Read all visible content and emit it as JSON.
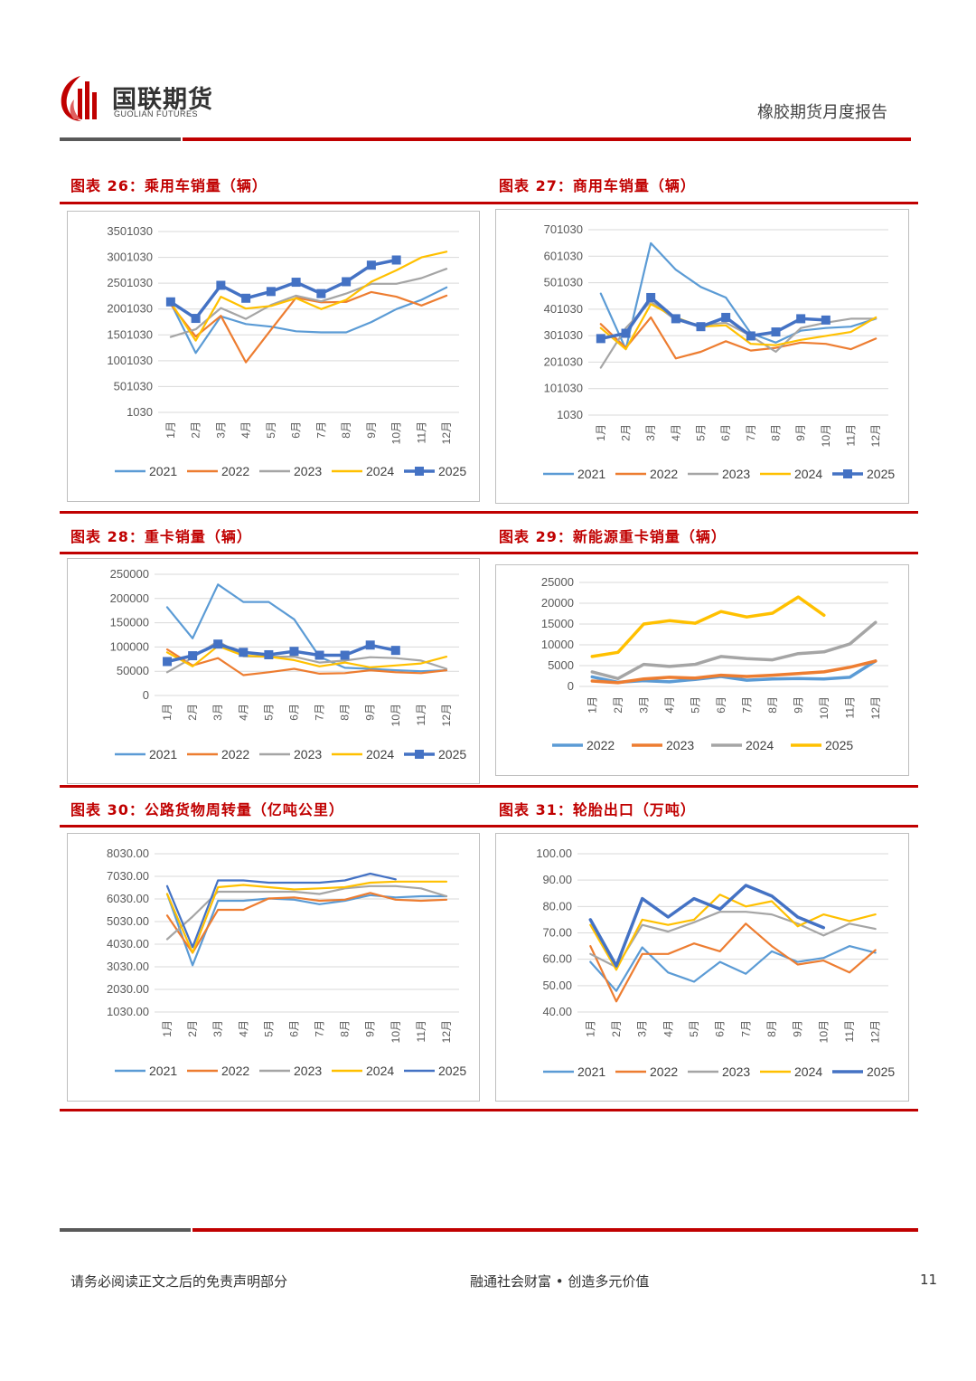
{
  "header": {
    "logo_cn": "国联期货",
    "logo_en": "GUOLIAN FUTURES",
    "report_title": "橡胶期货月度报告"
  },
  "footer": {
    "disclaimer": "请务必阅读正文之后的免责声明部分",
    "slogan": "融通社会财富 • 创造多元价值",
    "page_number": "11"
  },
  "colors": {
    "brand_red": "#c00000",
    "2021": "#5b9bd5",
    "2022": "#ed7d31",
    "2023": "#a5a5a5",
    "2024": "#ffc000",
    "2025": "#4472c4"
  },
  "chart_data": [
    {
      "title": "图表 26：乘用车销量（辆）",
      "type": "line",
      "categories": [
        "1月",
        "2月",
        "3月",
        "4月",
        "5月",
        "6月",
        "7月",
        "8月",
        "9月",
        "10月",
        "11月",
        "12月"
      ],
      "ylim": [
        1030,
        3501030
      ],
      "yticks": [
        "1030",
        "501030",
        "1001030",
        "1501030",
        "2001030",
        "2501030",
        "3001030",
        "3501030"
      ],
      "ytick_values": [
        1030,
        501030,
        1001030,
        1501030,
        2001030,
        2501030,
        3001030,
        3501030
      ],
      "grid": true,
      "legend": "bottom",
      "series": [
        {
          "name": "2021",
          "values": [
            2120000,
            1150000,
            1860000,
            1710000,
            1660000,
            1570000,
            1550000,
            1550000,
            1750000,
            2000000,
            2180000,
            2420000
          ]
        },
        {
          "name": "2022",
          "values": [
            2090000,
            1470000,
            1870000,
            970000,
            1600000,
            2220000,
            2130000,
            2140000,
            2330000,
            2240000,
            2070000,
            2260000
          ]
        },
        {
          "name": "2023",
          "values": [
            1460000,
            1610000,
            2020000,
            1810000,
            2080000,
            2260000,
            2150000,
            2300000,
            2490000,
            2490000,
            2600000,
            2780000
          ]
        },
        {
          "name": "2024",
          "values": [
            2130000,
            1390000,
            2240000,
            2010000,
            2060000,
            2210000,
            2000000,
            2180000,
            2530000,
            2750000,
            3000000,
            3110000
          ]
        },
        {
          "name": "2025",
          "values": [
            2140000,
            1820000,
            2460000,
            2210000,
            2340000,
            2520000,
            2300000,
            2530000,
            2850000,
            2950000,
            null,
            null
          ],
          "markers": true
        }
      ]
    },
    {
      "title": "图表 27：商用车销量（辆）",
      "type": "line",
      "categories": [
        "1月",
        "2月",
        "3月",
        "4月",
        "5月",
        "6月",
        "7月",
        "8月",
        "9月",
        "10月",
        "11月",
        "12月"
      ],
      "ylim": [
        1030,
        701030
      ],
      "yticks": [
        "1030",
        "101030",
        "201030",
        "301030",
        "401030",
        "501030",
        "601030",
        "701030"
      ],
      "ytick_values": [
        1030,
        101030,
        201030,
        301030,
        401030,
        501030,
        601030,
        701030
      ],
      "grid": true,
      "legend": "bottom",
      "series": [
        {
          "name": "2021",
          "values": [
            460000,
            250000,
            650000,
            550000,
            485000,
            445000,
            310000,
            275000,
            320000,
            330000,
            335000,
            365000
          ]
        },
        {
          "name": "2022",
          "values": [
            345000,
            255000,
            370000,
            215000,
            240000,
            280000,
            245000,
            255000,
            275000,
            270000,
            250000,
            290000
          ]
        },
        {
          "name": "2023",
          "values": [
            180000,
            330000,
            430000,
            360000,
            340000,
            350000,
            300000,
            240000,
            330000,
            350000,
            365000,
            365000
          ]
        },
        {
          "name": "2024",
          "values": [
            330000,
            250000,
            420000,
            370000,
            335000,
            340000,
            270000,
            265000,
            285000,
            300000,
            315000,
            370000
          ]
        },
        {
          "name": "2025",
          "values": [
            290000,
            310000,
            445000,
            365000,
            335000,
            370000,
            300000,
            315000,
            365000,
            360000,
            null,
            null
          ],
          "markers": true
        }
      ]
    },
    {
      "title": "图表 28：重卡销量（辆）",
      "type": "line",
      "categories": [
        "1月",
        "2月",
        "3月",
        "4月",
        "5月",
        "6月",
        "7月",
        "8月",
        "9月",
        "10月",
        "11月",
        "12月"
      ],
      "ylim": [
        0,
        250000
      ],
      "yticks": [
        "0",
        "50000",
        "100000",
        "150000",
        "200000",
        "250000"
      ],
      "ytick_values": [
        0,
        50000,
        100000,
        150000,
        200000,
        250000
      ],
      "grid": true,
      "legend": "bottom",
      "series": [
        {
          "name": "2021",
          "values": [
            182000,
            118000,
            229000,
            193000,
            193000,
            157000,
            80000,
            57000,
            55000,
            52000,
            50000,
            52000
          ]
        },
        {
          "name": "2022",
          "values": [
            95000,
            62000,
            77000,
            42000,
            48000,
            55000,
            45000,
            46000,
            52000,
            48000,
            46000,
            52000
          ]
        },
        {
          "name": "2023",
          "values": [
            48000,
            78000,
            112000,
            81000,
            80000,
            80000,
            68000,
            72000,
            79000,
            77000,
            72000,
            55000
          ]
        },
        {
          "name": "2024",
          "values": [
            89000,
            60000,
            102000,
            82000,
            80000,
            73000,
            60000,
            68000,
            58000,
            62000,
            66000,
            80000
          ]
        },
        {
          "name": "2025",
          "values": [
            70000,
            82000,
            106000,
            89000,
            84000,
            91000,
            83000,
            83000,
            104000,
            93000,
            null,
            null
          ],
          "markers": true
        }
      ]
    },
    {
      "title": "图表 29：新能源重卡销量（辆）",
      "type": "line",
      "categories": [
        "1月",
        "2月",
        "3月",
        "4月",
        "5月",
        "6月",
        "7月",
        "8月",
        "9月",
        "10月",
        "11月",
        "12月"
      ],
      "ylim": [
        0,
        25000
      ],
      "yticks": [
        "0",
        "5000",
        "10000",
        "15000",
        "20000",
        "25000"
      ],
      "ytick_values": [
        0,
        5000,
        10000,
        15000,
        20000,
        25000
      ],
      "grid": true,
      "legend": "bottom",
      "series": [
        {
          "name": "2022",
          "values": [
            2300,
            1000,
            1400,
            1100,
            1700,
            2400,
            1500,
            1800,
            1900,
            1800,
            2200,
            6100
          ],
          "color": "#5b9bd5"
        },
        {
          "name": "2023",
          "values": [
            1300,
            900,
            1800,
            2200,
            2000,
            2700,
            2400,
            2700,
            3100,
            3500,
            4600,
            6100
          ],
          "color": "#ed7d31"
        },
        {
          "name": "2024",
          "values": [
            3500,
            1900,
            5300,
            4800,
            5300,
            7200,
            6700,
            6400,
            7900,
            8300,
            10200,
            15400
          ],
          "color": "#a5a5a5"
        },
        {
          "name": "2025",
          "values": [
            7200,
            8200,
            15000,
            15800,
            15200,
            18000,
            16700,
            17600,
            21500,
            17100,
            null,
            null
          ],
          "color": "#ffc000"
        }
      ]
    },
    {
      "title": "图表 30：公路货物周转量（亿吨公里）",
      "type": "line",
      "categories": [
        "1月",
        "2月",
        "3月",
        "4月",
        "5月",
        "6月",
        "7月",
        "8月",
        "9月",
        "10月",
        "11月",
        "12月"
      ],
      "ylim": [
        1030,
        8030
      ],
      "yticks": [
        "1030.00",
        "2030.00",
        "3030.00",
        "4030.00",
        "5030.00",
        "6030.00",
        "7030.00",
        "8030.00"
      ],
      "ytick_values": [
        1030,
        2030,
        3030,
        4030,
        5030,
        6030,
        7030,
        8030
      ],
      "grid": true,
      "legend": "bottom",
      "series": [
        {
          "name": "2021",
          "values": [
            6250,
            3100,
            5950,
            5950,
            6050,
            6000,
            5800,
            5950,
            6200,
            6100,
            6150,
            6150
          ]
        },
        {
          "name": "2022",
          "values": [
            5300,
            3650,
            5550,
            5550,
            6050,
            6100,
            5950,
            6000,
            6300,
            6000,
            5950,
            6000
          ]
        },
        {
          "name": "2023",
          "values": [
            4250,
            5250,
            6350,
            6350,
            6350,
            6350,
            6250,
            6500,
            6600,
            6600,
            6500,
            6150
          ]
        },
        {
          "name": "2024",
          "values": [
            6250,
            3650,
            6550,
            6650,
            6550,
            6450,
            6500,
            6550,
            6750,
            6800,
            6800,
            6800
          ]
        },
        {
          "name": "2025",
          "values": [
            6600,
            3900,
            6850,
            6850,
            6750,
            6750,
            6750,
            6850,
            7150,
            6900,
            null,
            null
          ]
        }
      ]
    },
    {
      "title": "图表 31：轮胎出口（万吨）",
      "type": "line",
      "categories": [
        "1月",
        "2月",
        "3月",
        "4月",
        "5月",
        "6月",
        "7月",
        "8月",
        "9月",
        "10月",
        "11月",
        "12月"
      ],
      "ylim": [
        40,
        100
      ],
      "yticks": [
        "40.00",
        "50.00",
        "60.00",
        "70.00",
        "80.00",
        "90.00",
        "100.00"
      ],
      "ytick_values": [
        40,
        50,
        60,
        70,
        80,
        90,
        100
      ],
      "grid": true,
      "legend": "bottom",
      "series": [
        {
          "name": "2021",
          "values": [
            59,
            48,
            64.5,
            55,
            51.5,
            59,
            54.5,
            63,
            59,
            60.5,
            65,
            62.5
          ]
        },
        {
          "name": "2022",
          "values": [
            65,
            44,
            62,
            62,
            66,
            63,
            73.5,
            65,
            58,
            59.5,
            55,
            63.5
          ]
        },
        {
          "name": "2023",
          "values": [
            62,
            57,
            73,
            70.5,
            74,
            78,
            78,
            77,
            73.5,
            69,
            73.5,
            71.5
          ]
        },
        {
          "name": "2024",
          "values": [
            73,
            56,
            75,
            73,
            75,
            84.5,
            80,
            82,
            72.5,
            77,
            74.5,
            77
          ]
        },
        {
          "name": "2025",
          "values": [
            75,
            57.5,
            83,
            76,
            83,
            79,
            88,
            84,
            76,
            72,
            null,
            null
          ],
          "thick": true
        }
      ]
    }
  ]
}
